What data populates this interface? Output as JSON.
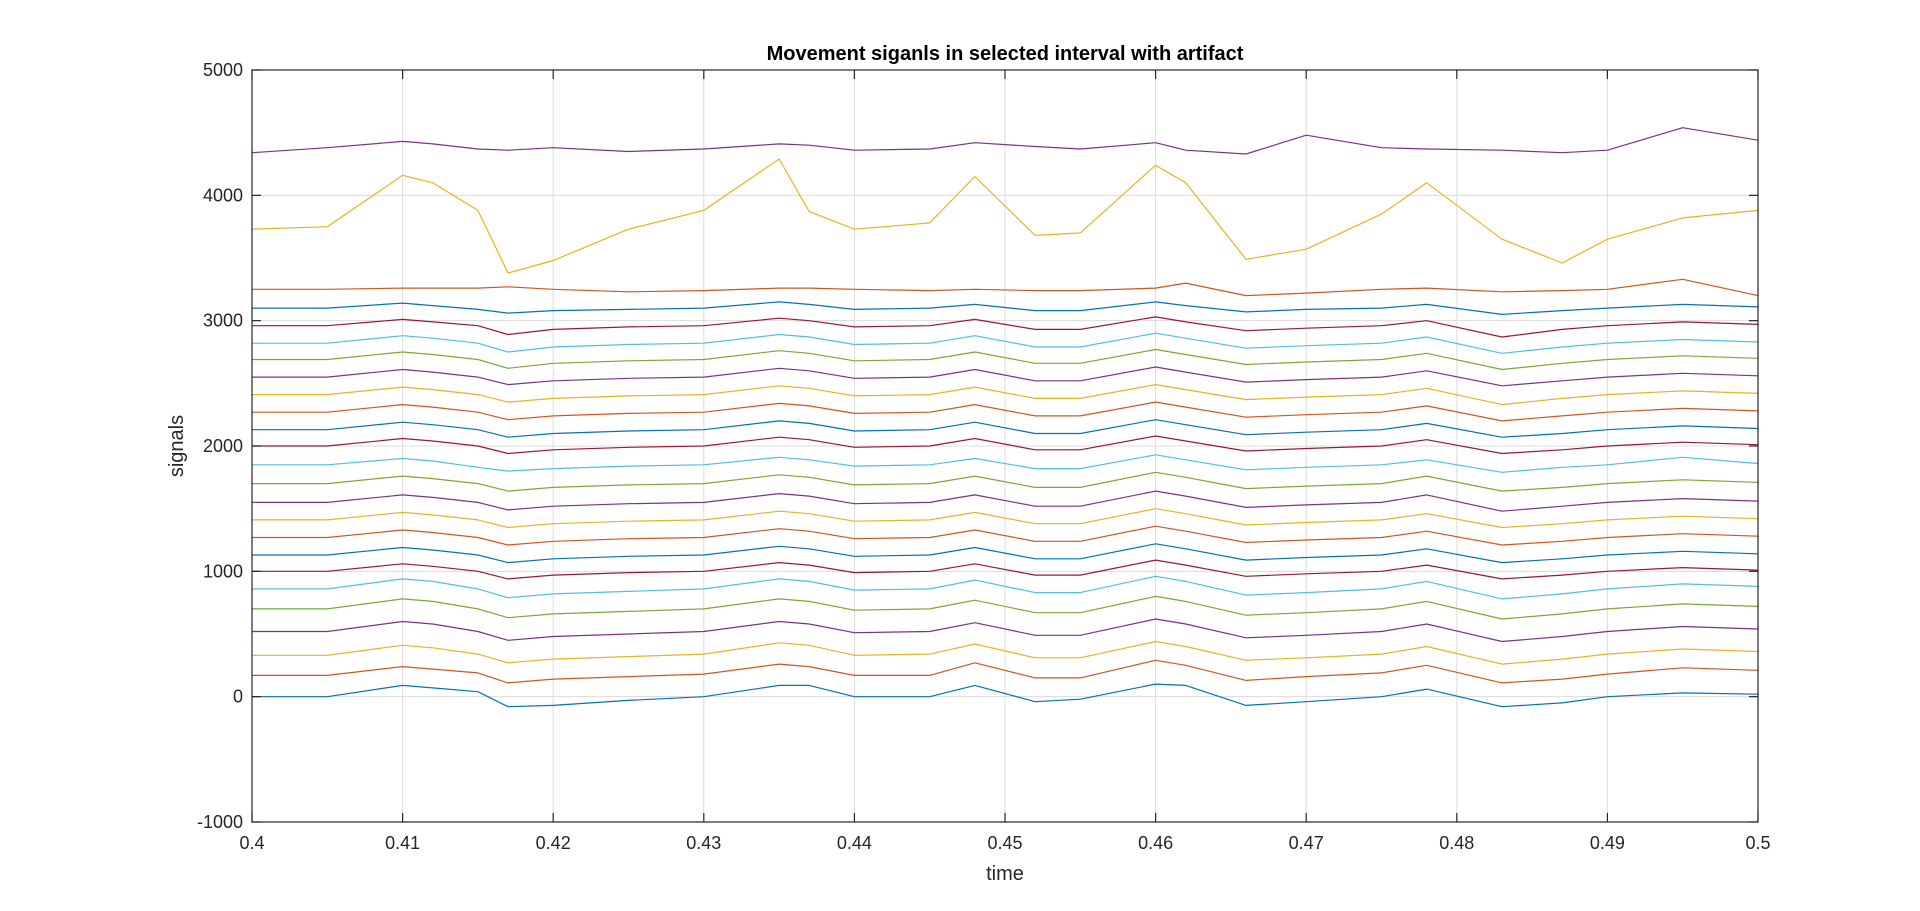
{
  "chart_data": {
    "type": "line",
    "title": "Movement siganls in selected interval with artifact",
    "xlabel": "time",
    "ylabel": "signals",
    "xlim": [
      0.4,
      0.5
    ],
    "ylim": [
      -1000,
      5000
    ],
    "xticks": [
      0.4,
      0.41,
      0.42,
      0.43,
      0.44,
      0.45,
      0.46,
      0.47,
      0.48,
      0.49,
      0.5
    ],
    "xtick_labels": [
      "0.4",
      "0.41",
      "0.42",
      "0.43",
      "0.44",
      "0.45",
      "0.46",
      "0.47",
      "0.48",
      "0.49",
      "0.5"
    ],
    "yticks": [
      -1000,
      0,
      1000,
      2000,
      3000,
      4000,
      5000
    ],
    "ytick_labels": [
      "-1000",
      "0",
      "1000",
      "2000",
      "3000",
      "4000",
      "5000"
    ],
    "grid": true,
    "colors": [
      "#0072BD",
      "#D95319",
      "#EDB120",
      "#7E2F8E",
      "#77AC30",
      "#4DBEEE",
      "#A2142F"
    ],
    "x": [
      0.4,
      0.405,
      0.41,
      0.412,
      0.415,
      0.417,
      0.42,
      0.425,
      0.43,
      0.435,
      0.437,
      0.44,
      0.445,
      0.448,
      0.452,
      0.455,
      0.46,
      0.462,
      0.466,
      0.47,
      0.475,
      0.478,
      0.483,
      0.487,
      0.49,
      0.495,
      0.5
    ],
    "series": [
      {
        "values": [
          0,
          0,
          90,
          70,
          40,
          -80,
          -70,
          -30,
          0,
          90,
          90,
          0,
          0,
          90,
          -40,
          -20,
          100,
          90,
          -70,
          -40,
          0,
          60,
          -80,
          -50,
          0,
          30,
          20
        ]
      },
      {
        "values": [
          170,
          170,
          240,
          220,
          190,
          110,
          140,
          160,
          180,
          260,
          240,
          170,
          170,
          270,
          150,
          150,
          290,
          250,
          130,
          160,
          190,
          250,
          110,
          140,
          180,
          230,
          210
        ]
      },
      {
        "values": [
          330,
          330,
          410,
          390,
          340,
          270,
          300,
          320,
          340,
          430,
          410,
          330,
          340,
          420,
          310,
          310,
          440,
          400,
          290,
          310,
          340,
          400,
          260,
          300,
          340,
          380,
          360
        ]
      },
      {
        "values": [
          520,
          520,
          600,
          580,
          520,
          450,
          480,
          500,
          520,
          600,
          580,
          510,
          520,
          590,
          490,
          490,
          620,
          580,
          470,
          490,
          520,
          580,
          440,
          480,
          520,
          560,
          540
        ]
      },
      {
        "values": [
          700,
          700,
          780,
          760,
          700,
          630,
          660,
          680,
          700,
          780,
          760,
          690,
          700,
          770,
          670,
          670,
          800,
          760,
          650,
          670,
          700,
          760,
          620,
          660,
          700,
          740,
          720
        ]
      },
      {
        "values": [
          860,
          860,
          940,
          920,
          860,
          790,
          820,
          840,
          860,
          940,
          920,
          850,
          860,
          930,
          830,
          830,
          960,
          920,
          810,
          830,
          860,
          920,
          780,
          820,
          860,
          900,
          880
        ]
      },
      {
        "values": [
          1000,
          1000,
          1060,
          1040,
          1000,
          940,
          970,
          990,
          1000,
          1070,
          1050,
          990,
          1000,
          1060,
          970,
          970,
          1090,
          1050,
          960,
          980,
          1000,
          1050,
          940,
          970,
          1000,
          1030,
          1010
        ]
      },
      {
        "values": [
          1130,
          1130,
          1190,
          1170,
          1130,
          1070,
          1100,
          1120,
          1130,
          1200,
          1180,
          1120,
          1130,
          1190,
          1100,
          1100,
          1220,
          1180,
          1090,
          1110,
          1130,
          1180,
          1070,
          1100,
          1130,
          1160,
          1140
        ]
      },
      {
        "values": [
          1270,
          1270,
          1330,
          1310,
          1270,
          1210,
          1240,
          1260,
          1270,
          1340,
          1320,
          1260,
          1270,
          1330,
          1240,
          1240,
          1360,
          1320,
          1230,
          1250,
          1270,
          1320,
          1210,
          1240,
          1270,
          1300,
          1280
        ]
      },
      {
        "values": [
          1410,
          1410,
          1470,
          1450,
          1410,
          1350,
          1380,
          1400,
          1410,
          1480,
          1460,
          1400,
          1410,
          1470,
          1380,
          1380,
          1500,
          1460,
          1370,
          1390,
          1410,
          1460,
          1350,
          1380,
          1410,
          1440,
          1420
        ]
      },
      {
        "values": [
          1550,
          1550,
          1610,
          1590,
          1550,
          1490,
          1520,
          1540,
          1550,
          1620,
          1600,
          1540,
          1550,
          1610,
          1520,
          1520,
          1640,
          1600,
          1510,
          1530,
          1550,
          1610,
          1480,
          1520,
          1550,
          1580,
          1560
        ]
      },
      {
        "values": [
          1700,
          1700,
          1760,
          1740,
          1700,
          1640,
          1670,
          1690,
          1700,
          1770,
          1750,
          1690,
          1700,
          1760,
          1670,
          1670,
          1790,
          1750,
          1660,
          1680,
          1700,
          1760,
          1640,
          1670,
          1700,
          1730,
          1710
        ]
      },
      {
        "values": [
          1850,
          1850,
          1900,
          1880,
          1830,
          1800,
          1820,
          1840,
          1850,
          1910,
          1890,
          1840,
          1850,
          1900,
          1820,
          1820,
          1930,
          1890,
          1810,
          1830,
          1850,
          1890,
          1790,
          1830,
          1850,
          1910,
          1860
        ]
      },
      {
        "values": [
          2000,
          2000,
          2060,
          2040,
          2000,
          1940,
          1970,
          1990,
          2000,
          2070,
          2050,
          1990,
          2000,
          2060,
          1970,
          1970,
          2080,
          2040,
          1960,
          1980,
          2000,
          2050,
          1940,
          1970,
          2000,
          2030,
          2010
        ]
      },
      {
        "values": [
          2130,
          2130,
          2190,
          2170,
          2130,
          2070,
          2100,
          2120,
          2130,
          2200,
          2180,
          2120,
          2130,
          2190,
          2100,
          2100,
          2210,
          2170,
          2090,
          2110,
          2130,
          2180,
          2070,
          2100,
          2130,
          2160,
          2140
        ]
      },
      {
        "values": [
          2270,
          2270,
          2330,
          2310,
          2270,
          2210,
          2240,
          2260,
          2270,
          2340,
          2320,
          2260,
          2270,
          2330,
          2240,
          2240,
          2350,
          2310,
          2230,
          2250,
          2270,
          2320,
          2200,
          2240,
          2270,
          2300,
          2280
        ]
      },
      {
        "values": [
          2410,
          2410,
          2470,
          2450,
          2410,
          2350,
          2380,
          2400,
          2410,
          2480,
          2460,
          2400,
          2410,
          2470,
          2380,
          2380,
          2490,
          2450,
          2370,
          2390,
          2410,
          2460,
          2330,
          2380,
          2410,
          2440,
          2420
        ]
      },
      {
        "values": [
          2550,
          2550,
          2610,
          2590,
          2550,
          2490,
          2520,
          2540,
          2550,
          2620,
          2600,
          2540,
          2550,
          2610,
          2520,
          2520,
          2630,
          2590,
          2510,
          2530,
          2550,
          2600,
          2480,
          2520,
          2550,
          2580,
          2560
        ]
      },
      {
        "values": [
          2690,
          2690,
          2750,
          2730,
          2690,
          2620,
          2660,
          2680,
          2690,
          2760,
          2740,
          2680,
          2690,
          2750,
          2660,
          2660,
          2770,
          2730,
          2650,
          2670,
          2690,
          2740,
          2610,
          2660,
          2690,
          2720,
          2700
        ]
      },
      {
        "values": [
          2820,
          2820,
          2880,
          2860,
          2820,
          2750,
          2790,
          2810,
          2820,
          2890,
          2870,
          2810,
          2820,
          2880,
          2790,
          2790,
          2900,
          2860,
          2780,
          2800,
          2820,
          2870,
          2740,
          2790,
          2820,
          2850,
          2830
        ]
      },
      {
        "values": [
          2960,
          2960,
          3010,
          2990,
          2960,
          2890,
          2930,
          2950,
          2960,
          3020,
          3000,
          2950,
          2960,
          3010,
          2930,
          2930,
          3030,
          2990,
          2920,
          2940,
          2960,
          3000,
          2870,
          2930,
          2960,
          2990,
          2970
        ]
      },
      {
        "values": [
          3100,
          3100,
          3140,
          3120,
          3090,
          3060,
          3080,
          3090,
          3100,
          3150,
          3130,
          3090,
          3100,
          3130,
          3080,
          3080,
          3150,
          3120,
          3070,
          3090,
          3100,
          3130,
          3050,
          3080,
          3100,
          3130,
          3110
        ]
      },
      {
        "values": [
          3250,
          3250,
          3260,
          3260,
          3260,
          3270,
          3250,
          3230,
          3240,
          3260,
          3260,
          3250,
          3240,
          3250,
          3240,
          3240,
          3260,
          3300,
          3200,
          3220,
          3250,
          3260,
          3230,
          3240,
          3250,
          3330,
          3200
        ]
      },
      {
        "values": [
          3730,
          3750,
          4160,
          4100,
          3880,
          3380,
          3480,
          3730,
          3880,
          4290,
          3870,
          3730,
          3780,
          4150,
          3680,
          3700,
          4240,
          4100,
          3490,
          3570,
          3850,
          4100,
          3650,
          3460,
          3650,
          3820,
          3880
        ]
      },
      {
        "values": [
          4340,
          4380,
          4430,
          4410,
          4370,
          4360,
          4380,
          4350,
          4370,
          4410,
          4400,
          4360,
          4370,
          4420,
          4390,
          4370,
          4420,
          4360,
          4330,
          4480,
          4380,
          4370,
          4360,
          4340,
          4360,
          4540,
          4440
        ]
      }
    ]
  }
}
